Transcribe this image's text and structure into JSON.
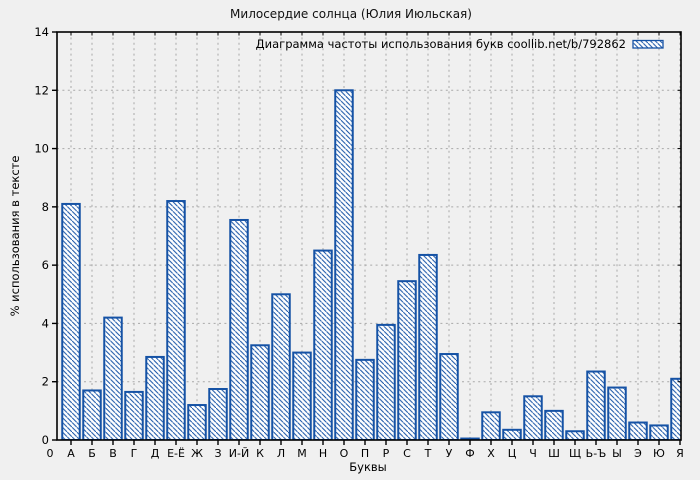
{
  "window": {
    "background": "#f0f0f0"
  },
  "chart_data": {
    "type": "bar",
    "title": "Милосердие солнца (Юлия Июльская)",
    "legend": "Диаграмма частоты использования букв coollib.net/b/792862",
    "legend_position": "top-right",
    "xlabel": "Буквы",
    "ylabel": "% использования в тексте",
    "categories": [
      "0",
      "А",
      "Б",
      "В",
      "Г",
      "Д",
      "Е-Ё",
      "Ж",
      "З",
      "И-Й",
      "К",
      "Л",
      "М",
      "Н",
      "О",
      "П",
      "Р",
      "С",
      "Т",
      "У",
      "Ф",
      "Х",
      "Ц",
      "Ч",
      "Ш",
      "Щ",
      "Ь-Ъ",
      "Ы",
      "Э",
      "Ю",
      "Я"
    ],
    "values": [
      0,
      8.1,
      1.7,
      4.2,
      1.65,
      2.85,
      8.2,
      1.2,
      1.75,
      7.55,
      3.25,
      5.0,
      3.0,
      6.5,
      12.0,
      2.75,
      3.95,
      5.45,
      6.35,
      2.95,
      0.05,
      0.95,
      0.35,
      1.5,
      1.0,
      0.3,
      2.35,
      1.8,
      0.6,
      0.5,
      2.1
    ],
    "ylim": [
      0,
      14
    ],
    "yticks": [
      0,
      2,
      4,
      6,
      8,
      10,
      12,
      14
    ],
    "grid": true,
    "bar_color": "#1552a5",
    "bar_fill": "diagonal-hatch-on-white",
    "grid_color": "#a8a8a8"
  }
}
